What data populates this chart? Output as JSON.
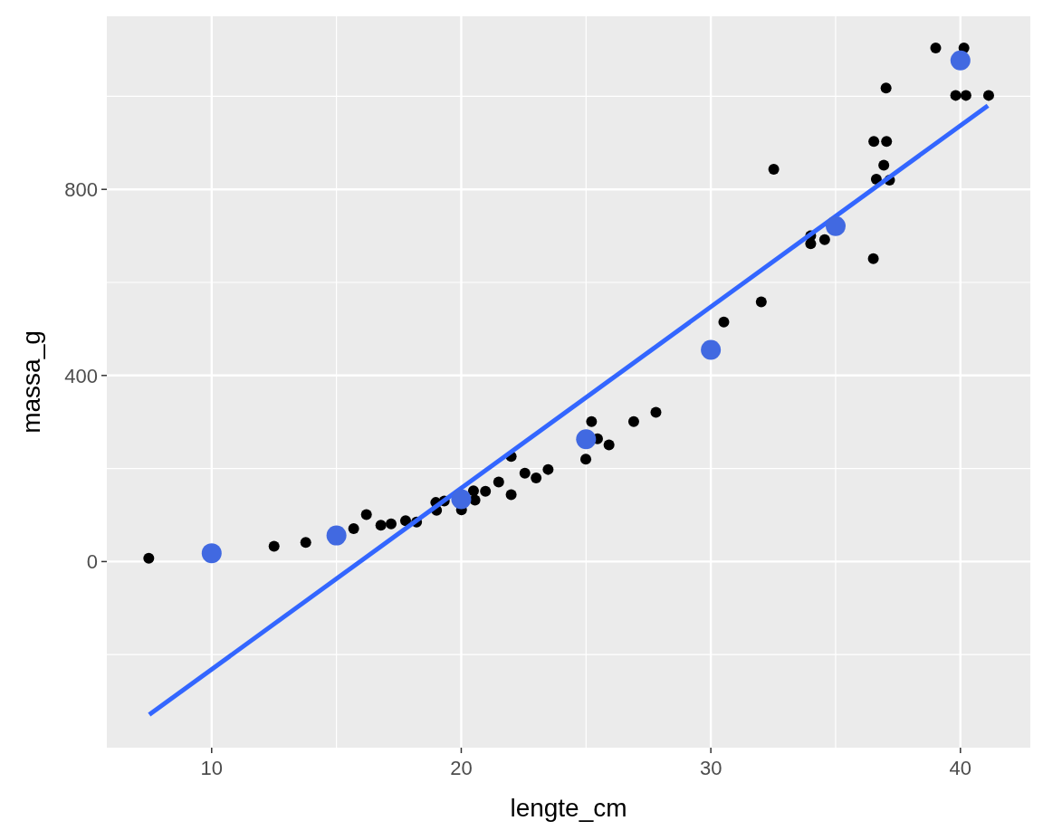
{
  "chart_data": {
    "type": "scatter",
    "xlabel": "lengte_cm",
    "ylabel": "massa_g",
    "xlim": [
      5.8,
      42.8
    ],
    "ylim": [
      -400,
      1172
    ],
    "xticks": [
      10,
      20,
      30,
      40
    ],
    "yticks": [
      0,
      400,
      800
    ],
    "grid": true,
    "marker": "circle",
    "series": [
      {
        "color": "#000000",
        "x": [
          7.48,
          12.5,
          13.77,
          15.69,
          16.2,
          16.78,
          17.19,
          17.77,
          18.21,
          18.98,
          19.01,
          19.32,
          20.01,
          20.49,
          20.55,
          20.97,
          21.5,
          22.0,
          22.0,
          22.55,
          23.0,
          23.48,
          24.99,
          25.22,
          25.46,
          25.92,
          26.91,
          27.8,
          30.52,
          32.02,
          32.52,
          34.0,
          34.0,
          34.56,
          36.51,
          36.63,
          37.16,
          36.93,
          36.53,
          37.04,
          37.02,
          39.01,
          40.14,
          39.81,
          40.22,
          41.13
        ],
        "values": [
          7,
          33,
          41,
          71,
          101,
          78,
          81,
          88,
          85,
          127,
          110,
          130,
          111,
          152,
          132,
          151,
          171,
          226,
          144,
          190,
          180,
          198,
          220,
          301,
          264,
          251,
          301,
          321,
          515,
          558,
          843,
          700,
          683,
          692,
          651,
          822,
          820,
          852,
          903,
          903,
          1018,
          1104,
          1104,
          1002,
          1002,
          1002
        ]
      },
      {
        "type": "line",
        "color": "#3366ff",
        "line_style": "solid",
        "marker": "none",
        "x": [
          7.5,
          41.1
        ],
        "values": [
          -329,
          980
        ]
      },
      {
        "color": "#4169e1",
        "x": [
          10,
          15,
          20,
          25,
          30,
          35,
          40
        ],
        "values": [
          18,
          56,
          134,
          263,
          455,
          721,
          1077
        ]
      }
    ]
  }
}
